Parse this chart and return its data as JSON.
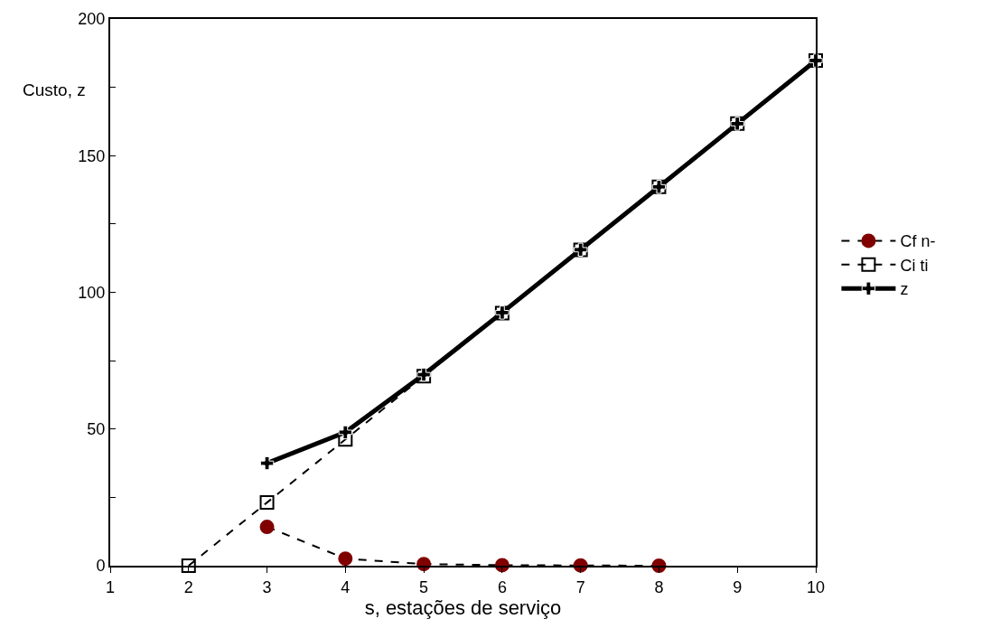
{
  "chart_data": {
    "type": "line",
    "xlabel": "s, estações de serviço",
    "ylabel": "Custo, z",
    "x": [
      2,
      3,
      4,
      5,
      6,
      7,
      8,
      9,
      10
    ],
    "series": [
      {
        "name": "Cf n-",
        "color": "#800000",
        "marker": "circle",
        "line_style": "dashed",
        "values": [
          null,
          14.2,
          2.6,
          0.6,
          0.2,
          0.1,
          0,
          null,
          null
        ]
      },
      {
        "name": "Ci ti",
        "color": "#000000",
        "marker": "square",
        "line_style": "dashed",
        "values": [
          0,
          23.1,
          46.2,
          69.3,
          92.4,
          115.5,
          138.6,
          161.7,
          184.8
        ]
      },
      {
        "name": "z",
        "color": "#000000",
        "marker": "cross",
        "line_style": "solid",
        "values": [
          null,
          37.5,
          48.8,
          69.9,
          92.6,
          115.6,
          138.6,
          161.7,
          184.8
        ]
      }
    ],
    "xlim": [
      1,
      10
    ],
    "xticks": [
      1,
      2,
      3,
      4,
      5,
      6,
      7,
      8,
      9,
      10
    ],
    "ylim": [
      0,
      200
    ],
    "yticks": [
      0,
      {
        "value": 25,
        "label": null
      },
      50,
      {
        "value": 75,
        "label": null
      },
      100,
      {
        "value": 125,
        "label": null
      },
      150,
      {
        "value": 175,
        "label": null
      },
      200
    ],
    "grid": false,
    "legend": "right"
  }
}
